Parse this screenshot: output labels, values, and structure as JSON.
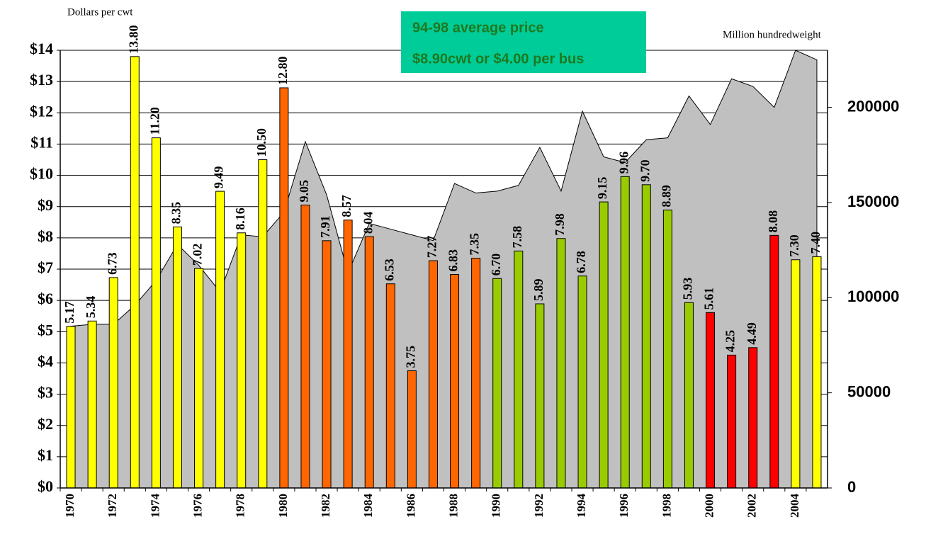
{
  "chart_data": {
    "type": "bar",
    "y_label": "Dollars per cwt",
    "y2_label": "Million hundredweight",
    "annotation": {
      "lines": [
        "94-98 average price",
        "$8.90cwt or $4.00 per bus"
      ],
      "color": "#00cc99",
      "text_color": "#1e7a1e"
    },
    "categories": [
      "1970",
      null,
      "1972",
      null,
      "1974",
      null,
      "1976",
      null,
      "1978",
      null,
      "1980",
      null,
      "1982",
      null,
      "1984",
      null,
      "1986",
      null,
      "1988",
      null,
      "1990",
      null,
      "1992",
      null,
      "1994",
      null,
      "1996",
      null,
      "1998",
      null,
      "2000",
      null,
      "2002",
      null,
      "2004",
      null
    ],
    "series": [
      {
        "type": "bar",
        "values": [
          5.17,
          5.34,
          6.73,
          13.8,
          11.2,
          8.35,
          7.02,
          9.49,
          8.16,
          10.5,
          12.8,
          9.05,
          7.91,
          8.57,
          8.04,
          6.53,
          3.75,
          7.27,
          6.83,
          7.35,
          6.7,
          7.58,
          5.89,
          7.98,
          6.78,
          9.15,
          9.96,
          9.7,
          8.89,
          5.93,
          5.61,
          4.25,
          4.49,
          8.08,
          7.3,
          7.4
        ],
        "value_labels": [
          "5.17",
          "5.34",
          "6.73",
          "13.80",
          "11.20",
          "8.35",
          "7.02",
          "9.49",
          "8.16",
          "10.50",
          "12.80",
          "9.05",
          "7.91",
          "8.57",
          "8.04",
          "6.53",
          "3.75",
          "7.27",
          "6.83",
          "7.35",
          "6.70",
          "7.58",
          "5.89",
          "7.98",
          "6.78",
          "9.15",
          "9.96",
          "9.70",
          "8.89",
          "5.93",
          "5.61",
          "4.25",
          "4.49",
          "8.08",
          "7.30",
          "7.40"
        ],
        "colors": [
          "#ffff00",
          "#ffff00",
          "#ffff00",
          "#ffff00",
          "#ffff00",
          "#ffff00",
          "#ffff00",
          "#ffff00",
          "#ffff00",
          "#ffff00",
          "#ff6600",
          "#ff6600",
          "#ff6600",
          "#ff6600",
          "#ff6600",
          "#ff6600",
          "#ff6600",
          "#ff6600",
          "#ff6600",
          "#ff6600",
          "#99cc00",
          "#99cc00",
          "#99cc00",
          "#99cc00",
          "#99cc00",
          "#99cc00",
          "#99cc00",
          "#99cc00",
          "#99cc00",
          "#99cc00",
          "#ff0000",
          "#ff0000",
          "#ff0000",
          "#ff0000",
          "#ffff00",
          "#ffff00"
        ]
      },
      {
        "type": "area",
        "axis": "y2",
        "color": "#c0c0c0",
        "values": [
          85000,
          86000,
          86000,
          96000,
          109000,
          128000,
          117000,
          103000,
          133000,
          132000,
          145000,
          182000,
          154000,
          113000,
          139000,
          136000,
          133000,
          130000,
          160000,
          155000,
          156000,
          159000,
          179000,
          156000,
          198000,
          174000,
          171000,
          183000,
          184000,
          206000,
          191000,
          215000,
          211000,
          200000,
          230000,
          225000
        ]
      }
    ],
    "ylim": [
      0,
      14
    ],
    "yticks": [
      {
        "value": 0,
        "label": "$0"
      },
      {
        "value": 1,
        "label": "$1"
      },
      {
        "value": 2,
        "label": "$2"
      },
      {
        "value": 3,
        "label": "$3"
      },
      {
        "value": 4,
        "label": "$4"
      },
      {
        "value": 5,
        "label": "$5"
      },
      {
        "value": 6,
        "label": "$6"
      },
      {
        "value": 7,
        "label": "$7"
      },
      {
        "value": 8,
        "label": "$8"
      },
      {
        "value": 9,
        "label": "$9"
      },
      {
        "value": 10,
        "label": "$10"
      },
      {
        "value": 11,
        "label": "$11"
      },
      {
        "value": 12,
        "label": "$12"
      },
      {
        "value": 13,
        "label": "$13"
      },
      {
        "value": 14,
        "label": "$14"
      }
    ],
    "y2lim": [
      0,
      230000
    ],
    "y2ticks": [
      0,
      50000,
      100000,
      150000,
      200000
    ],
    "grid": true
  }
}
